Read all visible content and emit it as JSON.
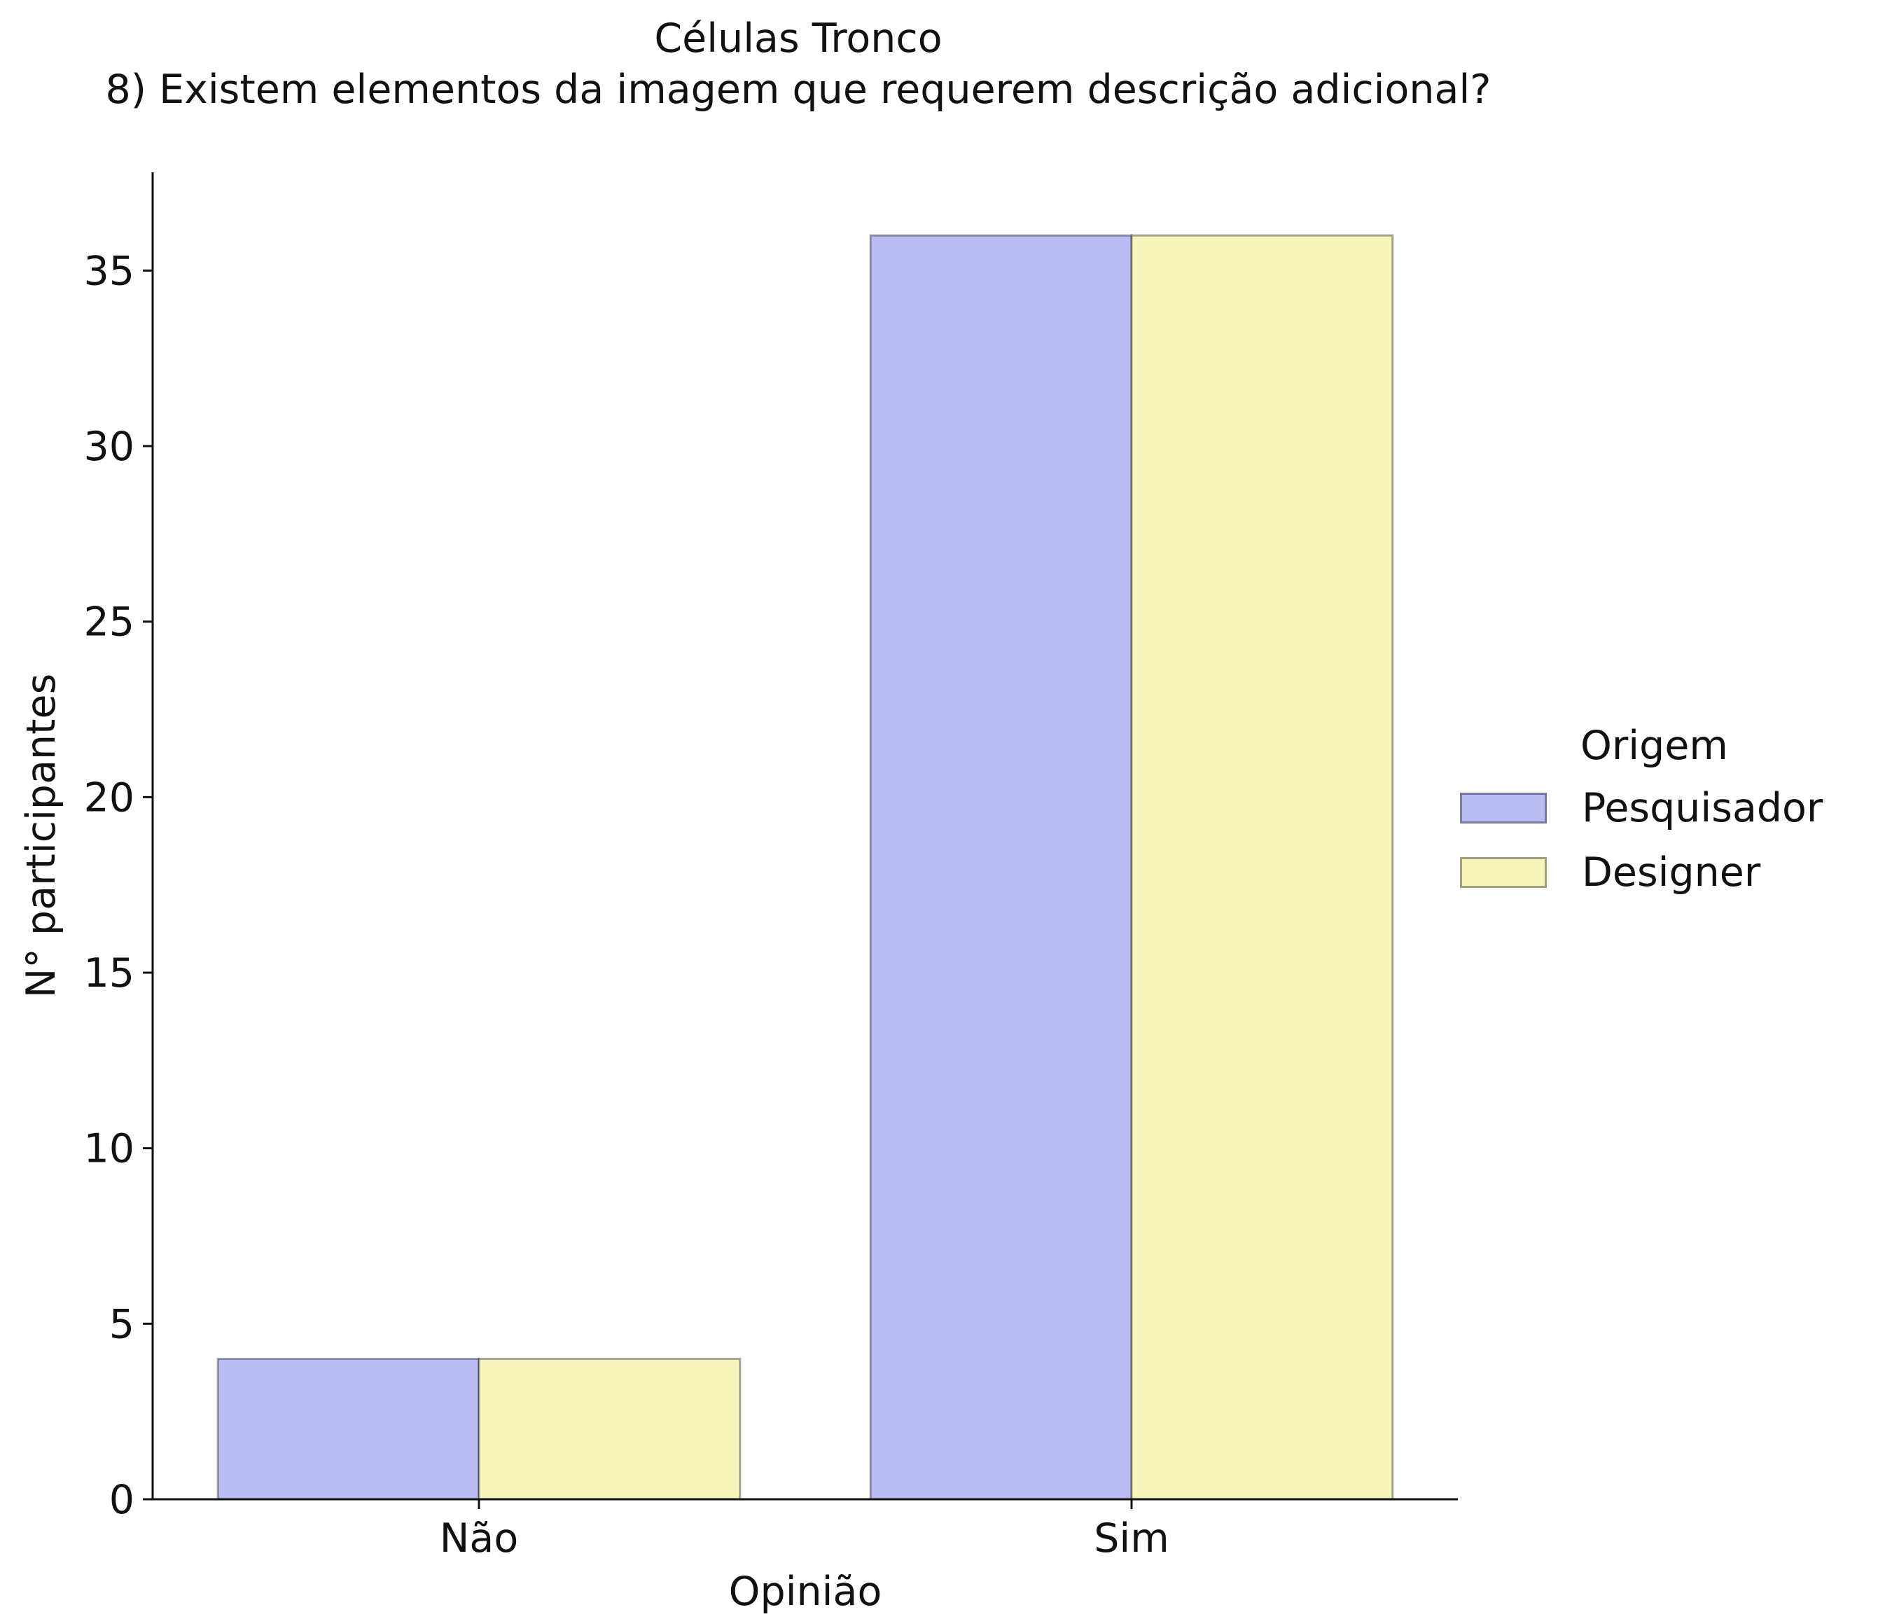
{
  "chart_data": {
    "type": "bar",
    "title": "Células Tronco",
    "subtitle": "8) Existem elementos da imagem que requerem descrição adicional?",
    "xlabel": "Opinião",
    "ylabel": "N° participantes",
    "categories": [
      "Não",
      "Sim"
    ],
    "series": [
      {
        "name": "Pesquisador",
        "values": [
          4,
          36
        ],
        "color": "#bbbcf4"
      },
      {
        "name": "Designer",
        "values": [
          4,
          36
        ],
        "color": "#f5f5bc"
      }
    ],
    "ylim": [
      0,
      37.8
    ],
    "yticks": [
      0,
      5,
      10,
      15,
      20,
      25,
      30,
      35
    ],
    "grid": false,
    "legend": {
      "title": "Origem",
      "placement": "right"
    }
  }
}
